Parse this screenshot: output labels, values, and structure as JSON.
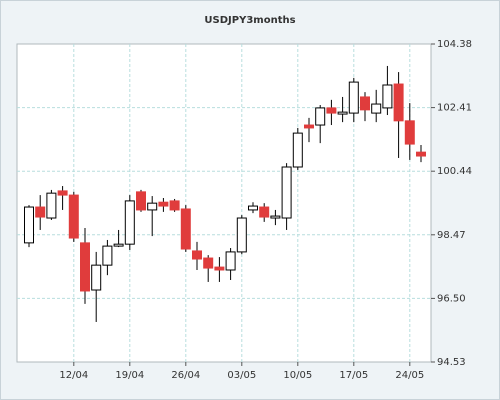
{
  "chart_data": {
    "type": "candlestick",
    "title": "USDJPY3months",
    "categories": [
      null,
      null,
      null,
      null,
      "12/04",
      null,
      null,
      null,
      null,
      "19/04",
      null,
      null,
      null,
      null,
      "26/04",
      null,
      null,
      null,
      null,
      "03/05",
      null,
      null,
      null,
      null,
      "10/05",
      null,
      null,
      null,
      null,
      "17/05",
      null,
      null,
      null,
      null,
      "24/05",
      null
    ],
    "series": [
      {
        "up_color": "#ffffff",
        "down_color": "#e03c3c",
        "open": [
          98.22,
          99.33,
          98.99,
          99.83,
          99.7,
          98.22,
          96.76,
          97.53,
          98.12,
          98.18,
          99.8,
          99.24,
          99.48,
          99.52,
          99.27,
          97.97,
          97.75,
          97.47,
          97.38,
          97.94,
          99.24,
          99.33,
          98.99,
          98.99,
          100.57,
          101.87,
          101.87,
          102.4,
          102.21,
          102.24,
          102.74,
          102.24,
          102.4,
          103.14,
          102.0,
          101.03
        ],
        "high": [
          99.39,
          99.7,
          99.86,
          99.98,
          99.8,
          98.68,
          97.94,
          98.31,
          98.62,
          99.7,
          99.86,
          99.67,
          99.61,
          99.58,
          99.39,
          98.25,
          97.84,
          97.78,
          98.06,
          99.08,
          99.48,
          99.45,
          99.24,
          100.69,
          101.78,
          102.09,
          102.49,
          102.65,
          102.74,
          103.33,
          102.89,
          102.96,
          103.7,
          103.51,
          102.55,
          101.25
        ],
        "low": [
          98.09,
          98.62,
          98.93,
          99.24,
          98.25,
          96.33,
          95.77,
          97.22,
          98.09,
          98.0,
          99.18,
          98.43,
          99.18,
          99.18,
          97.94,
          97.38,
          97.01,
          97.01,
          97.07,
          97.87,
          99.14,
          98.87,
          98.77,
          98.62,
          100.48,
          101.34,
          101.31,
          101.87,
          101.96,
          101.96,
          101.99,
          101.96,
          102.18,
          100.85,
          100.79,
          100.72
        ],
        "close": [
          99.33,
          99.02,
          99.76,
          99.7,
          98.37,
          96.73,
          97.53,
          98.12,
          98.18,
          99.52,
          99.24,
          99.45,
          99.36,
          99.24,
          98.03,
          97.72,
          97.44,
          97.38,
          97.94,
          98.99,
          99.36,
          99.02,
          99.05,
          100.57,
          101.62,
          101.78,
          102.4,
          102.24,
          102.27,
          103.2,
          102.34,
          102.52,
          103.11,
          102.0,
          101.28,
          100.91
        ]
      }
    ],
    "ylim": [
      94.53,
      104.38
    ],
    "yticks": [
      94.53,
      {
        "value": 96.5,
        "label": "96.50"
      },
      98.47,
      100.44,
      102.41,
      104.38
    ],
    "grid": true,
    "grid_color": "#b8dede"
  }
}
